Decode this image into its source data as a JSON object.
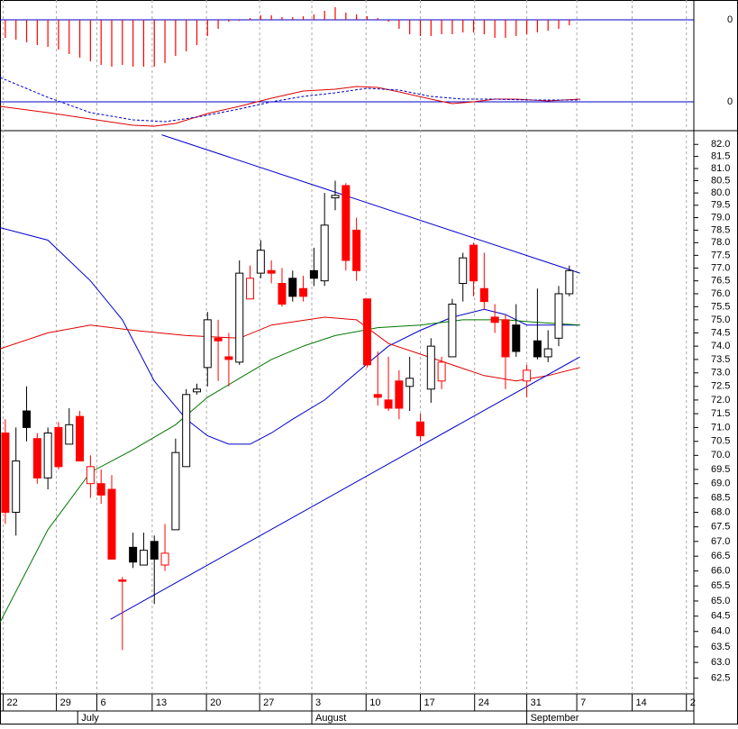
{
  "chart_data": {
    "type": "candlestick",
    "log_scale": true,
    "ylim": [
      62.0,
      82.5
    ],
    "yticks": [
      {
        "value": 62.5,
        "label": "62.5"
      },
      {
        "value": 63,
        "label": "63.0"
      },
      {
        "value": 63.5,
        "label": "63.5"
      },
      {
        "value": 64,
        "label": "64.0"
      },
      {
        "value": 64.5,
        "label": "64.5"
      },
      {
        "value": 65,
        "label": "65.0"
      },
      {
        "value": 65.5,
        "label": "65.5"
      },
      {
        "value": 66,
        "label": "66.0"
      },
      {
        "value": 66.5,
        "label": "66.5"
      },
      {
        "value": 67,
        "label": "67.0"
      },
      {
        "value": 67.5,
        "label": "67.5"
      },
      {
        "value": 68,
        "label": "68.0"
      },
      {
        "value": 68.5,
        "label": "68.5"
      },
      {
        "value": 69,
        "label": "69.0"
      },
      {
        "value": 69.5,
        "label": "69.5"
      },
      {
        "value": 70,
        "label": "70.0"
      },
      {
        "value": 70.5,
        "label": "70.5"
      },
      {
        "value": 71,
        "label": "71.0"
      },
      {
        "value": 71.5,
        "label": "71.5"
      },
      {
        "value": 72,
        "label": "72.0"
      },
      {
        "value": 72.5,
        "label": "72.5"
      },
      {
        "value": 73,
        "label": "73.0"
      },
      {
        "value": 73.5,
        "label": "73.5"
      },
      {
        "value": 74,
        "label": "74.0"
      },
      {
        "value": 74.5,
        "label": "74.5"
      },
      {
        "value": 75,
        "label": "75.0"
      },
      {
        "value": 75.5,
        "label": "75.5"
      },
      {
        "value": 76,
        "label": "76.0"
      },
      {
        "value": 76.5,
        "label": "76.5"
      },
      {
        "value": 77,
        "label": "77.0"
      },
      {
        "value": 77.5,
        "label": "77.5"
      },
      {
        "value": 78,
        "label": "78.0"
      },
      {
        "value": 78.5,
        "label": "78.5"
      },
      {
        "value": 79,
        "label": "79.0"
      },
      {
        "value": 79.5,
        "label": "79.5"
      },
      {
        "value": 80,
        "label": "80.0"
      },
      {
        "value": 80.5,
        "label": "80.5"
      },
      {
        "value": 81,
        "label": "81.0"
      },
      {
        "value": 81.5,
        "label": "81.5"
      },
      {
        "value": 82,
        "label": "82.0"
      }
    ],
    "xlim": [
      -0.5,
      64.7
    ],
    "xticks": [
      {
        "value": -0.2,
        "label": "22"
      },
      {
        "value": 4.8,
        "label": "29"
      },
      {
        "value": 8.6,
        "label": "6"
      },
      {
        "value": 13.8,
        "label": "13"
      },
      {
        "value": 18.9,
        "label": "20"
      },
      {
        "value": 23.9,
        "label": "27"
      },
      {
        "value": 28.8,
        "label": "3"
      },
      {
        "value": 33.9,
        "label": "10"
      },
      {
        "value": 39.0,
        "label": "17"
      },
      {
        "value": 44.1,
        "label": "24"
      },
      {
        "value": 49.0,
        "label": "31"
      },
      {
        "value": 53.7,
        "label": "7"
      },
      {
        "value": 58.9,
        "label": "14"
      },
      {
        "value": 64.0,
        "label": "2"
      }
    ],
    "months": [
      {
        "value": 6.8,
        "label": "July"
      },
      {
        "value": 28.8,
        "label": "August"
      },
      {
        "value": 49.0,
        "label": "September"
      }
    ],
    "open": [
      70.8,
      68.0,
      71.6,
      70.6,
      69.2,
      71.0,
      70.4,
      71.4,
      69.6,
      69.0,
      68.8,
      65.7,
      66.8,
      66.2,
      67.0,
      66.2,
      67.4,
      69.6,
      72.3,
      73.2,
      74.3,
      73.6,
      73.4,
      75.8,
      76.8,
      76.9,
      76.4,
      76.6,
      76.2,
      76.9,
      76.5,
      79.8,
      80.3,
      78.5,
      75.8,
      72.2,
      72.0,
      72.7,
      72.5,
      71.2,
      72.4,
      72.7,
      73.6,
      76.4,
      77.9,
      76.2,
      75.1,
      75.0,
      74.8,
      72.7,
      74.2,
      73.6,
      74.3,
      76.0
    ],
    "high": [
      71.3,
      71.0,
      72.5,
      70.8,
      71.0,
      71.2,
      71.7,
      71.6,
      70.0,
      69.5,
      69.3,
      65.8,
      67.3,
      67.3,
      67.2,
      67.6,
      70.6,
      72.4,
      72.6,
      75.3,
      75.0,
      74.5,
      77.3,
      77.1,
      78.1,
      77.3,
      77.0,
      76.9,
      76.7,
      77.8,
      80.0,
      80.5,
      80.4,
      79.0,
      75.8,
      73.8,
      73.6,
      73.1,
      73.6,
      71.5,
      74.3,
      73.6,
      75.8,
      77.6,
      78.0,
      77.6,
      75.6,
      75.2,
      75.6,
      73.3,
      76.2,
      74.6,
      76.3,
      77.1
    ],
    "low": [
      67.6,
      67.2,
      70.5,
      69.0,
      68.8,
      69.5,
      70.4,
      69.8,
      68.5,
      68.3,
      66.4,
      63.4,
      66.1,
      66.2,
      64.9,
      66.0,
      67.4,
      69.6,
      72.2,
      72.5,
      72.7,
      72.5,
      73.3,
      75.8,
      76.6,
      76.4,
      75.5,
      75.7,
      75.7,
      76.3,
      76.3,
      79.3,
      76.9,
      76.5,
      73.2,
      71.8,
      71.6,
      71.3,
      71.6,
      70.5,
      71.9,
      72.4,
      73.6,
      75.7,
      75.9,
      75.4,
      74.5,
      72.4,
      73.6,
      72.1,
      73.5,
      73.4,
      74.0,
      75.9
    ],
    "close": [
      68.0,
      69.8,
      71.0,
      69.2,
      70.8,
      69.6,
      71.1,
      69.8,
      69.0,
      68.6,
      66.4,
      65.7,
      66.3,
      66.7,
      66.4,
      66.6,
      70.1,
      72.2,
      72.4,
      75.0,
      74.2,
      73.5,
      76.8,
      76.6,
      77.7,
      76.8,
      75.6,
      75.9,
      75.9,
      76.6,
      78.7,
      79.9,
      77.3,
      76.9,
      73.3,
      72.1,
      71.7,
      71.7,
      72.8,
      70.7,
      74.0,
      73.4,
      75.6,
      77.4,
      76.5,
      75.7,
      74.9,
      73.6,
      73.8,
      73.1,
      73.6,
      73.9,
      76.0,
      76.9
    ],
    "fills": [
      "#ff0000",
      "#ffffff",
      "#000000",
      "#ff0000",
      "#ffffff",
      "#ff0000",
      "#ffffff",
      "#ff0000",
      "#ffffff",
      "#ff0000",
      "#ff0000",
      "#ff0000",
      "#000000",
      "#ffffff",
      "#000000",
      "#ffffff",
      "#ffffff",
      "#ffffff",
      "#ffffff",
      "#ffffff",
      "#ff0000",
      "#ff0000",
      "#ffffff",
      "#ffffff",
      "#ffffff",
      "#ff0000",
      "#ff0000",
      "#000000",
      "#ff0000",
      "#000000",
      "#ffffff",
      "#ffffff",
      "#ff0000",
      "#ff0000",
      "#ff0000",
      "#ff0000",
      "#ff0000",
      "#ff0000",
      "#ffffff",
      "#ff0000",
      "#ffffff",
      "#ffffff",
      "#ffffff",
      "#ffffff",
      "#ff0000",
      "#ff0000",
      "#ff0000",
      "#ff0000",
      "#000000",
      "#ffffff",
      "#000000",
      "#ffffff",
      "#ffffff",
      "#ffffff"
    ],
    "strokes": [
      "#ff0000",
      "#000000",
      "#000000",
      "#ff0000",
      "#000000",
      "#ff0000",
      "#000000",
      "#ff0000",
      "#ff0000",
      "#ff0000",
      "#ff0000",
      "#ff0000",
      "#000000",
      "#000000",
      "#000000",
      "#ff0000",
      "#000000",
      "#000000",
      "#000000",
      "#000000",
      "#ff0000",
      "#ff0000",
      "#000000",
      "#ff0000",
      "#000000",
      "#ff0000",
      "#ff0000",
      "#000000",
      "#ff0000",
      "#000000",
      "#000000",
      "#000000",
      "#ff0000",
      "#ff0000",
      "#ff0000",
      "#ff0000",
      "#ff0000",
      "#ff0000",
      "#000000",
      "#ff0000",
      "#000000",
      "#ff0000",
      "#000000",
      "#000000",
      "#ff0000",
      "#ff0000",
      "#ff0000",
      "#ff0000",
      "#000000",
      "#ff0000",
      "#000000",
      "#000000",
      "#000000",
      "#000000"
    ],
    "lines": [
      {
        "color": "#0000cc",
        "x": [
          -0.5,
          4,
          8,
          11,
          14,
          17,
          19,
          21,
          23,
          25,
          27,
          30,
          33,
          36,
          39,
          42,
          45,
          47,
          49,
          54
        ],
        "values": [
          78.6,
          78.1,
          76.5,
          75.0,
          72.7,
          71.3,
          70.7,
          70.4,
          70.4,
          70.8,
          71.3,
          72.0,
          73.0,
          74.0,
          74.6,
          75.1,
          75.4,
          75.2,
          74.8,
          74.8
        ]
      },
      {
        "color": "#dd0000",
        "x": [
          -0.5,
          4,
          8,
          12,
          17,
          22,
          25,
          30,
          33,
          36,
          39,
          42,
          45,
          48,
          51,
          54
        ],
        "values": [
          73.9,
          74.5,
          74.8,
          74.6,
          74.4,
          74.3,
          74.8,
          75.1,
          75.0,
          74.1,
          73.7,
          73.3,
          72.9,
          72.7,
          72.9,
          73.2
        ]
      },
      {
        "color": "#007700",
        "x": [
          -0.5,
          4,
          8,
          12,
          16,
          19,
          22,
          25,
          28,
          31,
          35,
          39,
          43,
          47,
          50,
          54
        ],
        "values": [
          64.3,
          67.4,
          69.4,
          70.2,
          71.1,
          72.1,
          72.8,
          73.5,
          74.0,
          74.4,
          74.7,
          74.8,
          75.0,
          75.0,
          74.9,
          74.8
        ]
      }
    ],
    "trendlines": [
      {
        "color": "#0000cc",
        "x": [
          14.7,
          54.0
        ],
        "values": [
          82.4,
          76.8
        ]
      },
      {
        "color": "#0000cc",
        "x": [
          9.9,
          54.0
        ],
        "values": [
          64.4,
          73.6
        ]
      }
    ],
    "histogram": {
      "color": "#ff0000",
      "ylim": [
        -58,
        22
      ],
      "yticks": [
        0
      ],
      "values": [
        -20,
        -22,
        -25,
        -28,
        -30,
        -33,
        -38,
        -42,
        -46,
        -50,
        -52,
        -50,
        -52,
        -52,
        -52,
        -48,
        -40,
        -35,
        -28,
        -18,
        -10,
        -2,
        -1,
        2,
        5,
        5,
        3,
        3,
        4,
        6,
        10,
        14,
        8,
        6,
        4,
        2,
        -2,
        -10,
        -16,
        -18,
        -18,
        -16,
        -16,
        -14,
        -14,
        -16,
        -20,
        -20,
        -18,
        -16,
        -14,
        -12,
        -10,
        -6
      ]
    },
    "macd": {
      "ylim": [
        -32,
        53
      ],
      "yticks": [
        0
      ],
      "lines": [
        {
          "color": "#dd0000",
          "dashed": false,
          "x": [
            -0.5,
            4,
            8,
            12,
            14,
            16,
            19,
            22,
            25,
            28,
            31,
            33,
            35,
            37,
            40,
            42,
            44,
            46,
            48,
            51,
            54
          ],
          "values": [
            -5,
            -12,
            -19,
            -26,
            -27,
            -24,
            -13,
            -5,
            4,
            12,
            14,
            17,
            16,
            11,
            3,
            -2,
            0,
            3,
            3,
            1,
            3
          ]
        },
        {
          "color": "#0000cc",
          "dashed": true,
          "x": [
            -0.5,
            4,
            8,
            12,
            15,
            18,
            22,
            25,
            28,
            31,
            34,
            37,
            40,
            43,
            46,
            49,
            54
          ],
          "values": [
            27,
            5,
            -12,
            -20,
            -22,
            -17,
            -8,
            0,
            6,
            10,
            15,
            13,
            6,
            3,
            3,
            2,
            2
          ]
        }
      ]
    }
  }
}
